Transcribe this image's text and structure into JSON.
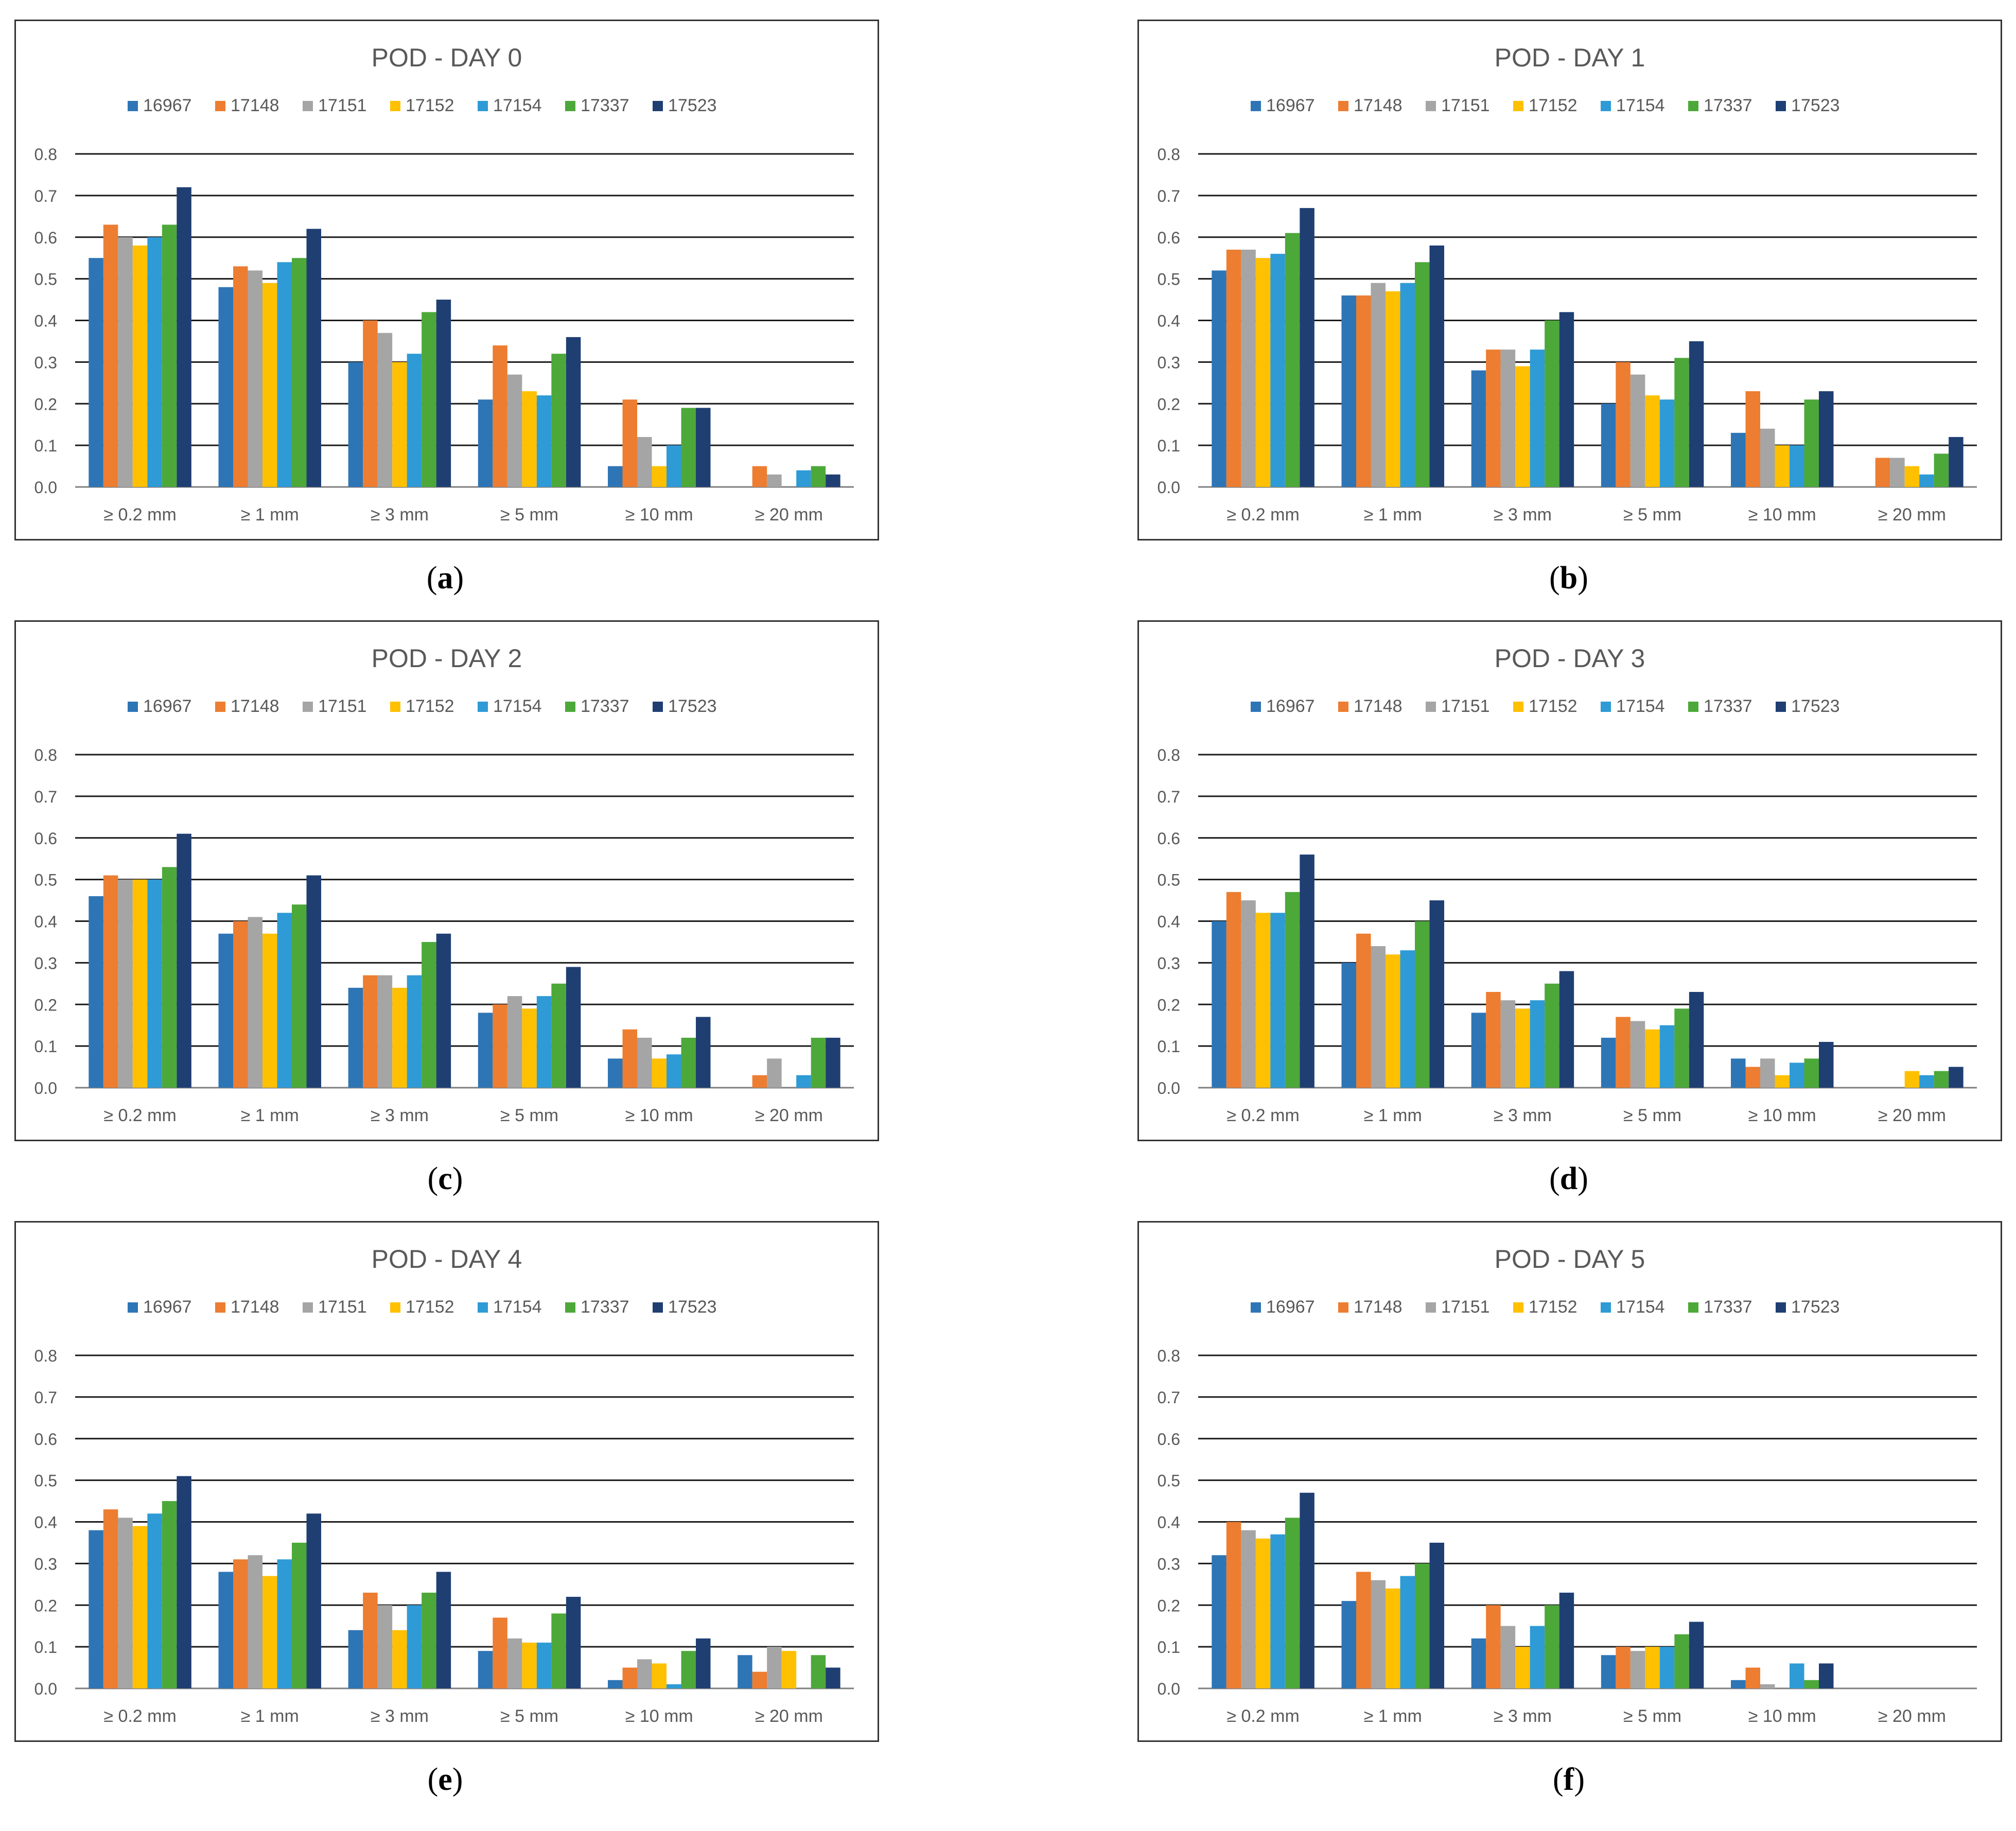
{
  "series_names": [
    "16967",
    "17148",
    "17151",
    "17152",
    "17154",
    "17337",
    "17523"
  ],
  "series_colors": [
    "#2e75b6",
    "#ed7d31",
    "#a5a5a5",
    "#ffc000",
    "#2e9bd6",
    "#4da83a",
    "#1f3f73"
  ],
  "categories": [
    "≥ 0.2 mm",
    "≥ 1 mm",
    "≥ 3 mm",
    "≥ 5 mm",
    "≥ 10 mm",
    "≥ 20 mm"
  ],
  "y_ticks": [
    "0.0",
    "0.1",
    "0.2",
    "0.3",
    "0.4",
    "0.5",
    "0.6",
    "0.7",
    "0.8"
  ],
  "chart_data": [
    {
      "type": "bar",
      "title": "POD - DAY 0",
      "caption_label": "a",
      "categories": [
        "≥ 0.2 mm",
        "≥ 1 mm",
        "≥ 3 mm",
        "≥ 5 mm",
        "≥ 10 mm",
        "≥ 20 mm"
      ],
      "ylim": [
        0,
        0.8
      ],
      "series": [
        {
          "name": "16967",
          "values": [
            0.55,
            0.48,
            0.3,
            0.21,
            0.05,
            0.0
          ]
        },
        {
          "name": "17148",
          "values": [
            0.63,
            0.53,
            0.4,
            0.34,
            0.21,
            0.05
          ]
        },
        {
          "name": "17151",
          "values": [
            0.6,
            0.52,
            0.37,
            0.27,
            0.12,
            0.03
          ]
        },
        {
          "name": "17152",
          "values": [
            0.58,
            0.49,
            0.3,
            0.23,
            0.05,
            0.0
          ]
        },
        {
          "name": "17154",
          "values": [
            0.6,
            0.54,
            0.32,
            0.22,
            0.1,
            0.04
          ]
        },
        {
          "name": "17337",
          "values": [
            0.63,
            0.55,
            0.42,
            0.32,
            0.19,
            0.05
          ]
        },
        {
          "name": "17523",
          "values": [
            0.72,
            0.62,
            0.45,
            0.36,
            0.19,
            0.03
          ]
        }
      ]
    },
    {
      "type": "bar",
      "title": "POD - DAY 1",
      "caption_label": "b",
      "categories": [
        "≥ 0.2 mm",
        "≥ 1 mm",
        "≥ 3 mm",
        "≥ 5 mm",
        "≥ 10 mm",
        "≥ 20 mm"
      ],
      "ylim": [
        0,
        0.8
      ],
      "series": [
        {
          "name": "16967",
          "values": [
            0.52,
            0.46,
            0.28,
            0.2,
            0.13,
            0.0
          ]
        },
        {
          "name": "17148",
          "values": [
            0.57,
            0.46,
            0.33,
            0.3,
            0.23,
            0.07
          ]
        },
        {
          "name": "17151",
          "values": [
            0.57,
            0.49,
            0.33,
            0.27,
            0.14,
            0.07
          ]
        },
        {
          "name": "17152",
          "values": [
            0.55,
            0.47,
            0.29,
            0.22,
            0.1,
            0.05
          ]
        },
        {
          "name": "17154",
          "values": [
            0.56,
            0.49,
            0.33,
            0.21,
            0.1,
            0.03
          ]
        },
        {
          "name": "17337",
          "values": [
            0.61,
            0.54,
            0.4,
            0.31,
            0.21,
            0.08
          ]
        },
        {
          "name": "17523",
          "values": [
            0.67,
            0.58,
            0.42,
            0.35,
            0.23,
            0.12
          ]
        }
      ]
    },
    {
      "type": "bar",
      "title": "POD - DAY 2",
      "caption_label": "c",
      "categories": [
        "≥ 0.2 mm",
        "≥ 1 mm",
        "≥ 3 mm",
        "≥ 5 mm",
        "≥ 10 mm",
        "≥ 20 mm"
      ],
      "ylim": [
        0,
        0.8
      ],
      "series": [
        {
          "name": "16967",
          "values": [
            0.46,
            0.37,
            0.24,
            0.18,
            0.07,
            0.0
          ]
        },
        {
          "name": "17148",
          "values": [
            0.51,
            0.4,
            0.27,
            0.2,
            0.14,
            0.03
          ]
        },
        {
          "name": "17151",
          "values": [
            0.5,
            0.41,
            0.27,
            0.22,
            0.12,
            0.07
          ]
        },
        {
          "name": "17152",
          "values": [
            0.5,
            0.37,
            0.24,
            0.19,
            0.07,
            0.0
          ]
        },
        {
          "name": "17154",
          "values": [
            0.5,
            0.42,
            0.27,
            0.22,
            0.08,
            0.03
          ]
        },
        {
          "name": "17337",
          "values": [
            0.53,
            0.44,
            0.35,
            0.25,
            0.12,
            0.12
          ]
        },
        {
          "name": "17523",
          "values": [
            0.61,
            0.51,
            0.37,
            0.29,
            0.17,
            0.12
          ]
        }
      ]
    },
    {
      "type": "bar",
      "title": "POD - DAY 3",
      "caption_label": "d",
      "categories": [
        "≥ 0.2 mm",
        "≥ 1 mm",
        "≥ 3 mm",
        "≥ 5 mm",
        "≥ 10 mm",
        "≥ 20 mm"
      ],
      "ylim": [
        0,
        0.8
      ],
      "series": [
        {
          "name": "16967",
          "values": [
            0.4,
            0.3,
            0.18,
            0.12,
            0.07,
            0.0
          ]
        },
        {
          "name": "17148",
          "values": [
            0.47,
            0.37,
            0.23,
            0.17,
            0.05,
            0.0
          ]
        },
        {
          "name": "17151",
          "values": [
            0.45,
            0.34,
            0.21,
            0.16,
            0.07,
            0.0
          ]
        },
        {
          "name": "17152",
          "values": [
            0.42,
            0.32,
            0.19,
            0.14,
            0.03,
            0.04
          ]
        },
        {
          "name": "17154",
          "values": [
            0.42,
            0.33,
            0.21,
            0.15,
            0.06,
            0.03
          ]
        },
        {
          "name": "17337",
          "values": [
            0.47,
            0.4,
            0.25,
            0.19,
            0.07,
            0.04
          ]
        },
        {
          "name": "17523",
          "values": [
            0.56,
            0.45,
            0.28,
            0.23,
            0.11,
            0.05
          ]
        }
      ]
    },
    {
      "type": "bar",
      "title": "POD - DAY 4",
      "caption_label": "e",
      "categories": [
        "≥ 0.2 mm",
        "≥ 1 mm",
        "≥ 3 mm",
        "≥ 5 mm",
        "≥ 10 mm",
        "≥ 20 mm"
      ],
      "ylim": [
        0,
        0.8
      ],
      "series": [
        {
          "name": "16967",
          "values": [
            0.38,
            0.28,
            0.14,
            0.09,
            0.02,
            0.08
          ]
        },
        {
          "name": "17148",
          "values": [
            0.43,
            0.31,
            0.23,
            0.17,
            0.05,
            0.04
          ]
        },
        {
          "name": "17151",
          "values": [
            0.41,
            0.32,
            0.2,
            0.12,
            0.07,
            0.1
          ]
        },
        {
          "name": "17152",
          "values": [
            0.39,
            0.27,
            0.14,
            0.11,
            0.06,
            0.09
          ]
        },
        {
          "name": "17154",
          "values": [
            0.42,
            0.31,
            0.2,
            0.11,
            0.01,
            0.0
          ]
        },
        {
          "name": "17337",
          "values": [
            0.45,
            0.35,
            0.23,
            0.18,
            0.09,
            0.08
          ]
        },
        {
          "name": "17523",
          "values": [
            0.51,
            0.42,
            0.28,
            0.22,
            0.12,
            0.05
          ]
        }
      ]
    },
    {
      "type": "bar",
      "title": "POD - DAY 5",
      "caption_label": "f",
      "categories": [
        "≥ 0.2 mm",
        "≥ 1 mm",
        "≥ 3 mm",
        "≥ 5 mm",
        "≥ 10 mm",
        "≥ 20 mm"
      ],
      "ylim": [
        0,
        0.8
      ],
      "series": [
        {
          "name": "16967",
          "values": [
            0.32,
            0.21,
            0.12,
            0.08,
            0.02,
            0.0
          ]
        },
        {
          "name": "17148",
          "values": [
            0.4,
            0.28,
            0.2,
            0.1,
            0.05,
            0.0
          ]
        },
        {
          "name": "17151",
          "values": [
            0.38,
            0.26,
            0.15,
            0.09,
            0.01,
            0.0
          ]
        },
        {
          "name": "17152",
          "values": [
            0.36,
            0.24,
            0.1,
            0.1,
            0.0,
            0.0
          ]
        },
        {
          "name": "17154",
          "values": [
            0.37,
            0.27,
            0.15,
            0.1,
            0.06,
            0.0
          ]
        },
        {
          "name": "17337",
          "values": [
            0.41,
            0.3,
            0.2,
            0.13,
            0.02,
            0.0
          ]
        },
        {
          "name": "17523",
          "values": [
            0.47,
            0.35,
            0.23,
            0.16,
            0.06,
            0.0
          ]
        }
      ]
    }
  ]
}
